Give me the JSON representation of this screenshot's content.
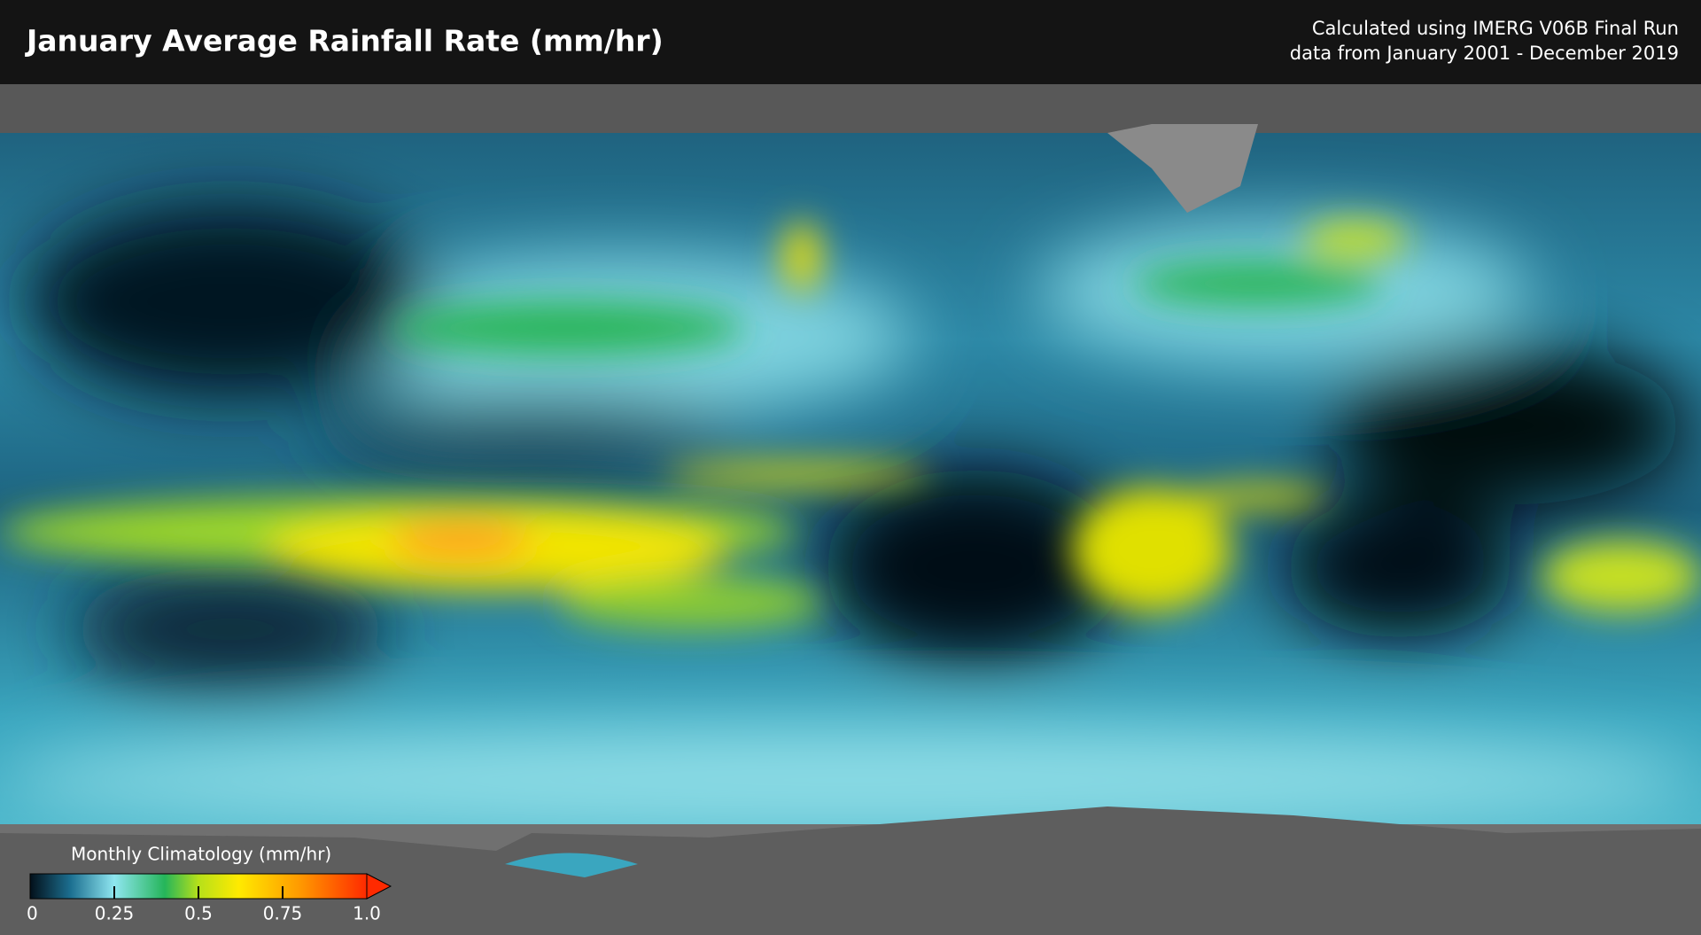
{
  "header": {
    "title": "January Average Rainfall Rate (mm/hr)",
    "note": [
      "Calculated using IMERG V06B Final Run",
      "data from January 2001 - December 2019"
    ]
  },
  "legend": {
    "title": "Monthly Climatology (mm/hr)",
    "range": [
      0,
      1
    ],
    "ticks": [
      0,
      0.25,
      0.5,
      0.75,
      {
        "value": 1,
        "label": "1.0"
      }
    ]
  }
}
